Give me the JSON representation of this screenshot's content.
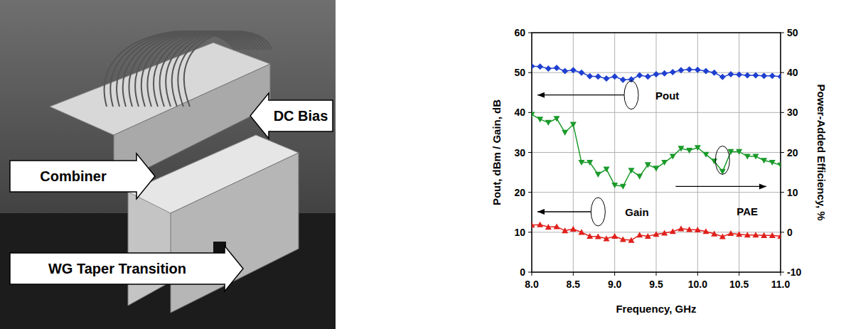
{
  "chart_data": {
    "type": "line",
    "x_label": "Frequency, GHz",
    "y_label": "Pout, dBm / Gain, dB",
    "y2_label": "Power-Added Efficiency, %",
    "x": [
      8.0,
      8.1,
      8.2,
      8.3,
      8.4,
      8.5,
      8.6,
      8.7,
      8.8,
      8.9,
      9.0,
      9.1,
      9.2,
      9.3,
      9.4,
      9.5,
      9.6,
      9.7,
      9.8,
      9.9,
      10.0,
      10.1,
      10.2,
      10.3,
      10.4,
      10.5,
      10.6,
      10.7,
      10.8,
      10.9,
      11.0
    ],
    "xlim": [
      8,
      11
    ],
    "xticks": [
      {
        "value": 8,
        "label": "8.0"
      },
      8.5,
      {
        "value": 9,
        "label": "9.0"
      },
      9.5,
      {
        "value": 10,
        "label": "10.0"
      },
      10.5,
      {
        "value": 11,
        "label": "11.0"
      }
    ],
    "ylim": [
      0,
      60
    ],
    "yticks": [
      0,
      10,
      20,
      30,
      40,
      50,
      60
    ],
    "y2lim": [
      -10,
      50
    ],
    "y2ticks": [
      -10,
      0,
      10,
      20,
      30,
      40,
      50
    ],
    "grid": true,
    "series": [
      {
        "name": "Pout",
        "color": "#1f3fd0",
        "marker": "diamond",
        "line_style": "solid",
        "values": [
          51.6,
          51.5,
          51.0,
          51.2,
          50.4,
          50.6,
          50.0,
          49.1,
          49.0,
          48.5,
          49.0,
          48.2,
          48.3,
          49.3,
          49.0,
          49.6,
          49.8,
          50.1,
          50.6,
          50.8,
          50.7,
          50.4,
          50.0,
          48.9,
          49.6,
          49.5,
          49.3,
          49.3,
          49.2,
          49.2,
          49.0
        ]
      },
      {
        "name": "Gain",
        "color": "#e0201b",
        "marker": "triangle-up",
        "line_style": "solid",
        "values": [
          11.8,
          11.9,
          11.3,
          11.4,
          10.4,
          10.8,
          10.0,
          9.0,
          8.9,
          8.4,
          9.0,
          8.2,
          8.0,
          9.3,
          9.0,
          9.5,
          9.8,
          10.2,
          10.9,
          10.7,
          10.6,
          10.2,
          9.6,
          8.9,
          9.7,
          9.5,
          9.3,
          9.3,
          9.2,
          9.2,
          9.0
        ]
      },
      {
        "name": "PAE",
        "color": "#1a9a2a",
        "marker": "triangle-down",
        "line_style": "solid",
        "axis": "y2",
        "values": [
          29.5,
          28.3,
          27.5,
          28.5,
          25.0,
          27.0,
          17.5,
          17.5,
          14.5,
          15.8,
          11.8,
          11.5,
          15.5,
          14.0,
          16.9,
          16.0,
          17.5,
          19.0,
          21.0,
          20.5,
          21.2,
          19.5,
          17.8,
          15.2,
          20.2,
          20.2,
          19.0,
          19.0,
          18.0,
          17.5,
          16.8
        ]
      }
    ]
  },
  "photo": {
    "labels": [
      "DC Bias",
      "Combiner",
      "WG Taper Transition"
    ]
  }
}
